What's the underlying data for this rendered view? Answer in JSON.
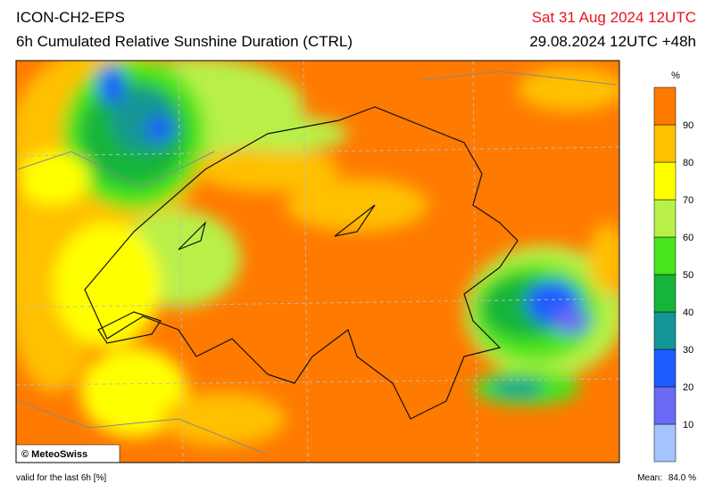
{
  "header": {
    "model": "ICON-CH2-EPS",
    "product": "6h Cumulated Relative Sunshine Duration (CTRL)",
    "valid_time": "Sat 31 Aug 2024 12UTC",
    "run": "29.08.2024 12UTC +48h"
  },
  "colorbar": {
    "unit": "%",
    "ticks": [
      10,
      20,
      30,
      40,
      50,
      60,
      70,
      80,
      90
    ],
    "colors": [
      "#a4c4ff",
      "#6a6af5",
      "#1f5cff",
      "#139696",
      "#16b43a",
      "#48e41e",
      "#b8f048",
      "#ffff00",
      "#ffc000",
      "#ff7a00"
    ]
  },
  "map": {
    "credit": "© MeteoSwiss"
  },
  "footer": {
    "note": "valid for the last 6h [%]",
    "mean_label": "Mean:",
    "mean_value": "84.0 %"
  }
}
